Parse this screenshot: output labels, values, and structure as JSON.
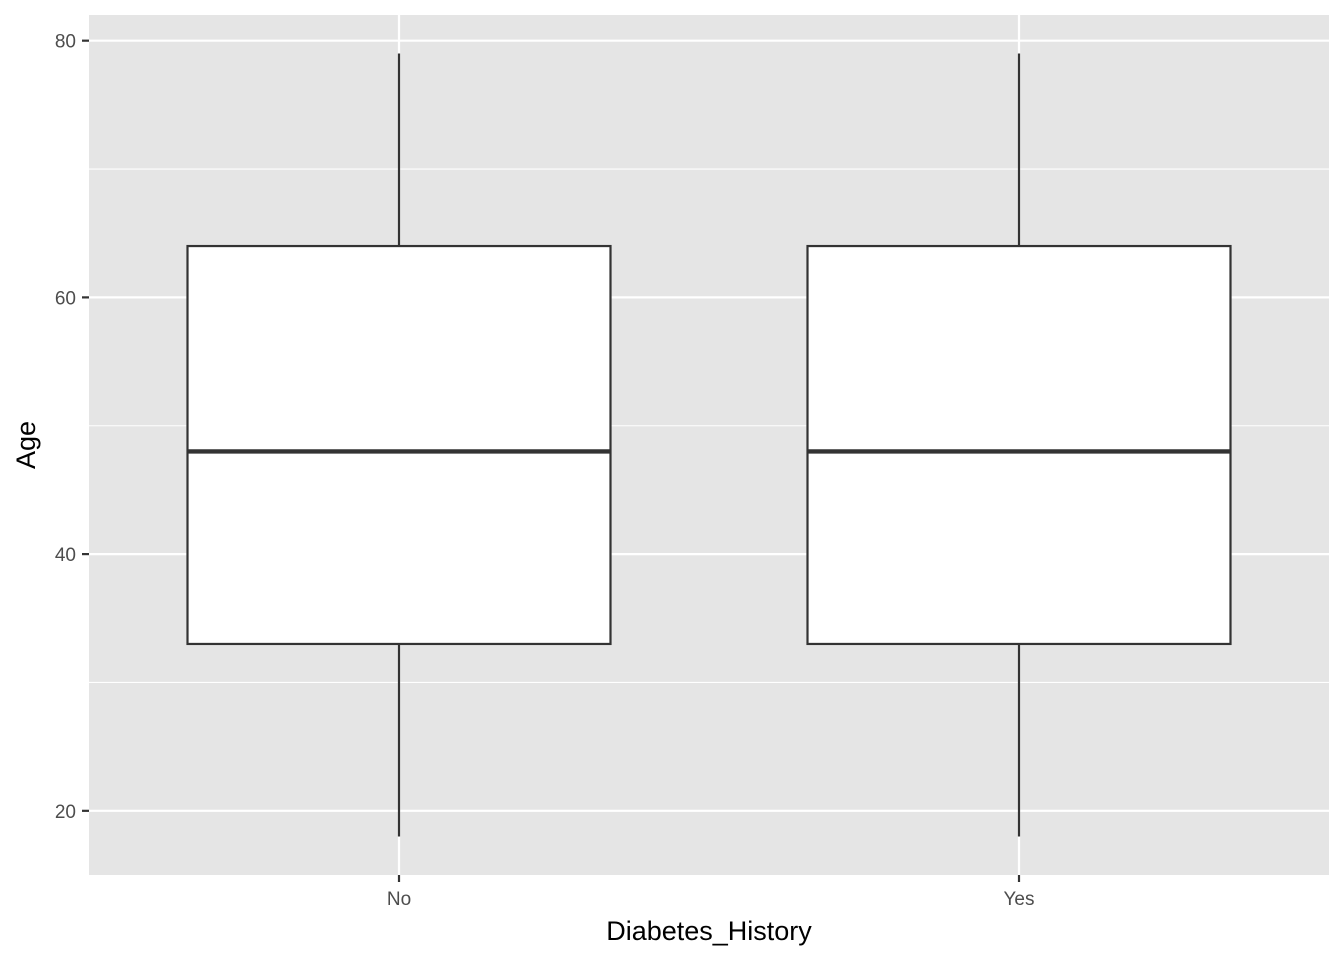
{
  "chart_data": {
    "type": "boxplot",
    "title": "",
    "xlabel": "Diabetes_History",
    "ylabel": "Age",
    "categories": [
      "No",
      "Yes"
    ],
    "boxes": [
      {
        "category": "No",
        "whisker_low": 18,
        "q1": 33,
        "median": 48,
        "q3": 64,
        "whisker_high": 79
      },
      {
        "category": "Yes",
        "whisker_low": 18,
        "q1": 33,
        "median": 48,
        "q3": 64,
        "whisker_high": 79
      }
    ],
    "ylim": [
      15,
      82
    ],
    "y_ticks": [
      20,
      40,
      60,
      80
    ],
    "grid": true,
    "legend": "none",
    "colors": {
      "panel_background": "#e5e5e5",
      "grid_line": "#ffffff",
      "box_fill": "#ffffff",
      "box_stroke": "#333333",
      "whisker": "#333333",
      "tick_mark": "#333333"
    }
  }
}
